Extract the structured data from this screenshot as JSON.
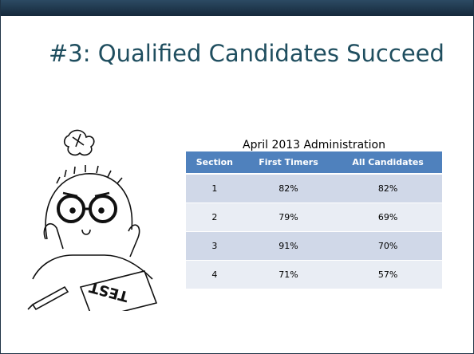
{
  "title": "#3:  Qualified Candidates Succeed",
  "table": {
    "subtitle": "April 2013 Administration",
    "header": [
      "Section",
      "First Timers",
      "All Candidates"
    ],
    "rows": [
      [
        "1",
        "82%",
        "82%"
      ],
      [
        "2",
        "79%",
        "69%"
      ],
      [
        "3",
        "91%",
        "70%"
      ],
      [
        "4",
        "71%",
        "57%"
      ]
    ]
  }
}
